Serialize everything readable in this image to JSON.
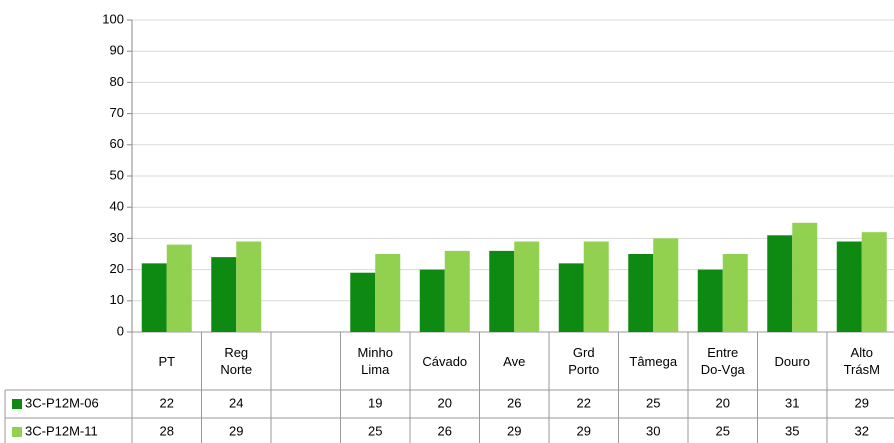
{
  "chart_data": {
    "type": "bar",
    "categories": [
      "PT",
      "Reg Norte",
      null,
      "Minho Lima",
      "Cávado",
      "Ave",
      "Grd Porto",
      "Tâmega",
      "Entre Do-Vga",
      "Douro",
      "Alto TrásM"
    ],
    "series": [
      {
        "name": "3C-P12M-06",
        "color": "#0e8a12",
        "values": [
          22,
          24,
          null,
          19,
          20,
          26,
          22,
          25,
          20,
          31,
          29
        ]
      },
      {
        "name": "3C-P12M-11",
        "color": "#92d050",
        "values": [
          28,
          29,
          null,
          25,
          26,
          29,
          29,
          30,
          25,
          35,
          32
        ]
      }
    ],
    "ylim": [
      0,
      100
    ],
    "yticks": [
      0,
      10,
      20,
      30,
      40,
      50,
      60,
      70,
      80,
      90,
      100
    ],
    "grid": true
  }
}
